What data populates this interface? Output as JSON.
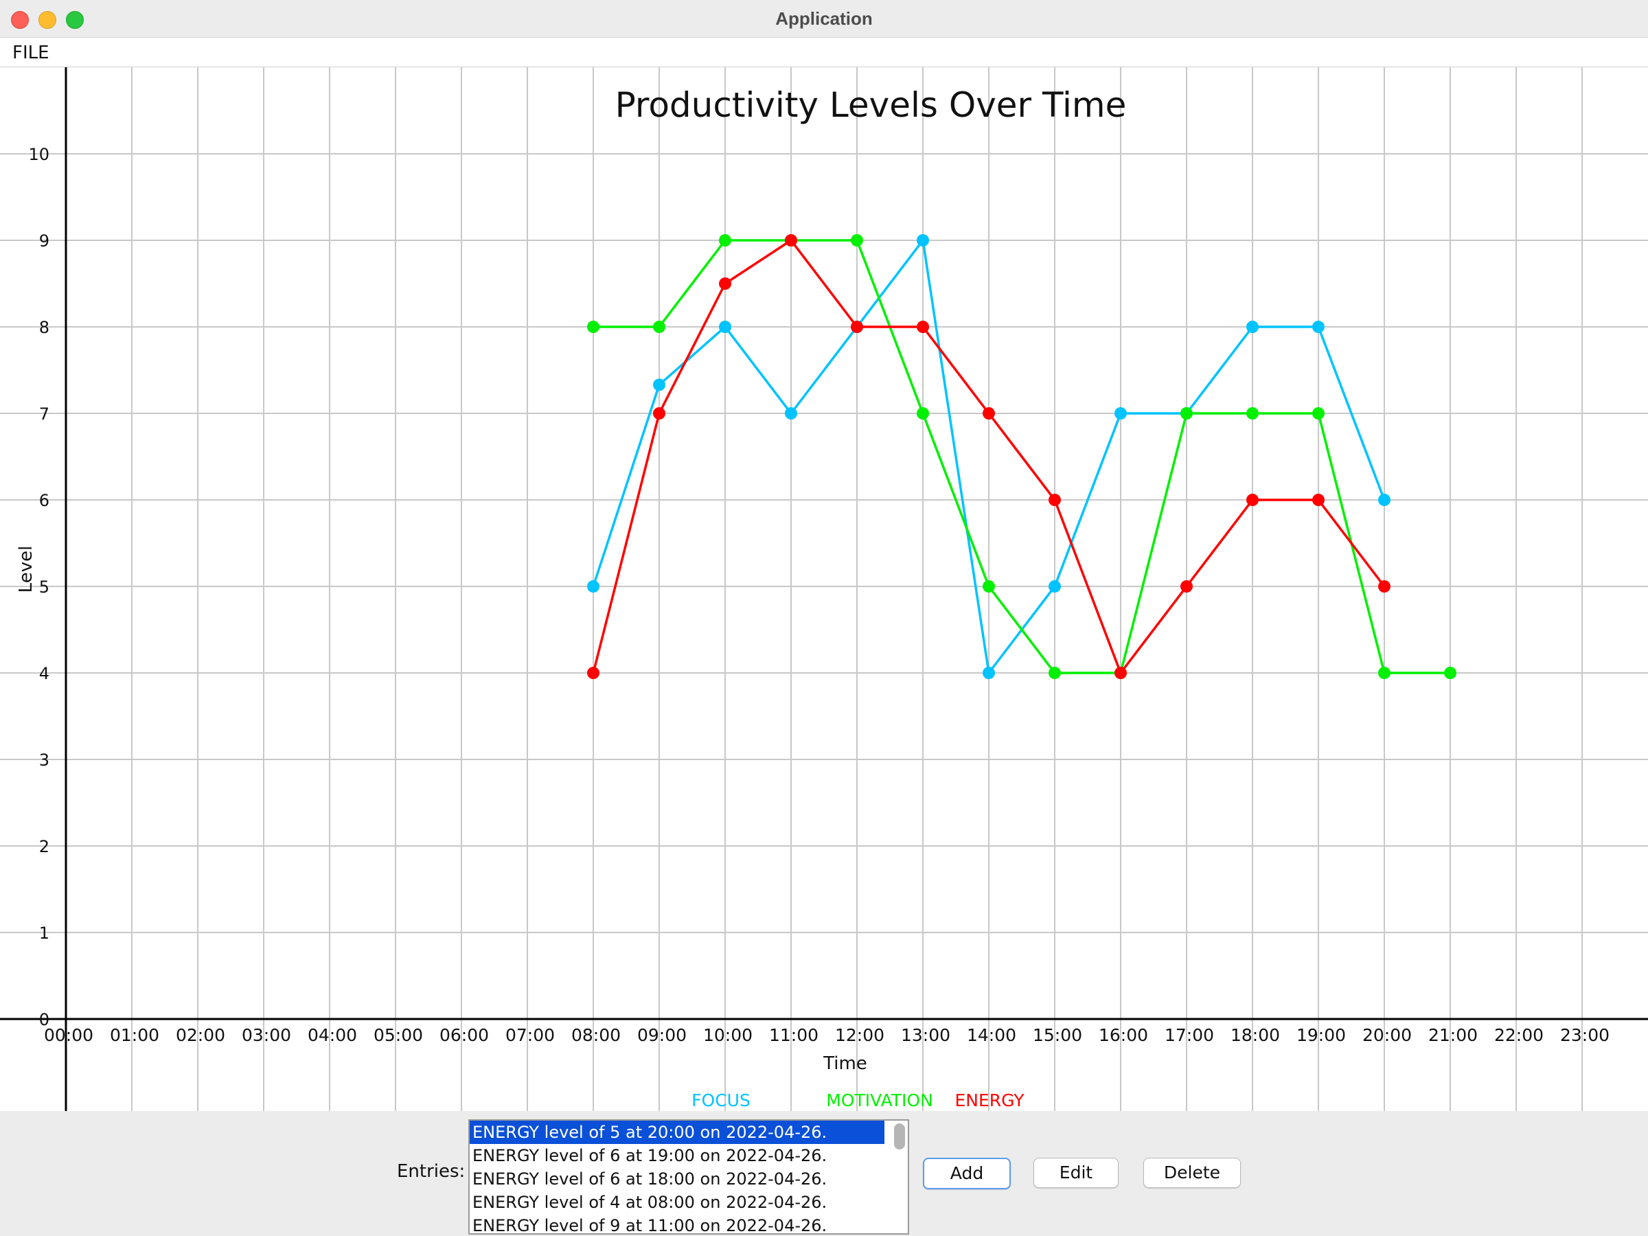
{
  "window": {
    "title": "Application"
  },
  "menu": {
    "file_label": "FILE"
  },
  "chart_data": {
    "type": "line",
    "title": "Productivity Levels Over Time",
    "xlabel": "Time",
    "ylabel": "Level",
    "x": [
      "00:00",
      "01:00",
      "02:00",
      "03:00",
      "04:00",
      "05:00",
      "06:00",
      "07:00",
      "08:00",
      "09:00",
      "10:00",
      "11:00",
      "12:00",
      "13:00",
      "14:00",
      "15:00",
      "16:00",
      "17:00",
      "18:00",
      "19:00",
      "20:00",
      "21:00",
      "22:00",
      "23:00"
    ],
    "yticks": [
      "0",
      "1",
      "2",
      "3",
      "4",
      "5",
      "6",
      "7",
      "8",
      "9",
      "10"
    ],
    "ylim": [
      0,
      10
    ],
    "grid": true,
    "legend_position": "bottom",
    "series": [
      {
        "name": "FOCUS",
        "color": "#00c3ff",
        "points": [
          [
            "08:00",
            5
          ],
          [
            "09:00",
            7.33
          ],
          [
            "10:00",
            8
          ],
          [
            "11:00",
            7
          ],
          [
            "12:00",
            8
          ],
          [
            "13:00",
            9
          ],
          [
            "14:00",
            4
          ],
          [
            "15:00",
            5
          ],
          [
            "16:00",
            7
          ],
          [
            "17:00",
            7
          ],
          [
            "18:00",
            8
          ],
          [
            "19:00",
            8
          ],
          [
            "20:00",
            6
          ]
        ]
      },
      {
        "name": "MOTIVATION",
        "color": "#00f000",
        "points": [
          [
            "08:00",
            8
          ],
          [
            "09:00",
            8
          ],
          [
            "10:00",
            9
          ],
          [
            "11:00",
            9
          ],
          [
            "12:00",
            9
          ],
          [
            "13:00",
            7
          ],
          [
            "14:00",
            5
          ],
          [
            "15:00",
            4
          ],
          [
            "16:00",
            4
          ],
          [
            "17:00",
            7
          ],
          [
            "18:00",
            7
          ],
          [
            "19:00",
            7
          ],
          [
            "20:00",
            4
          ],
          [
            "21:00",
            4
          ]
        ]
      },
      {
        "name": "ENERGY",
        "color": "#ff0000",
        "points": [
          [
            "08:00",
            4
          ],
          [
            "09:00",
            7
          ],
          [
            "10:00",
            8.5
          ],
          [
            "11:00",
            9
          ],
          [
            "12:00",
            8
          ],
          [
            "13:00",
            8
          ],
          [
            "14:00",
            7
          ],
          [
            "15:00",
            6
          ],
          [
            "16:00",
            4
          ],
          [
            "17:00",
            5
          ],
          [
            "18:00",
            6
          ],
          [
            "19:00",
            6
          ],
          [
            "20:00",
            5
          ]
        ]
      }
    ]
  },
  "entries": {
    "label": "Entries:",
    "items": [
      "ENERGY level of 5 at 20:00 on 2022-04-26.",
      "ENERGY level of 6 at 19:00 on 2022-04-26.",
      "ENERGY level of 6 at 18:00 on 2022-04-26.",
      "ENERGY level of 4 at 08:00 on 2022-04-26.",
      "ENERGY level of 9 at 11:00 on 2022-04-26."
    ],
    "selected_index": 0
  },
  "buttons": {
    "add": "Add",
    "edit": "Edit",
    "delete": "Delete"
  }
}
